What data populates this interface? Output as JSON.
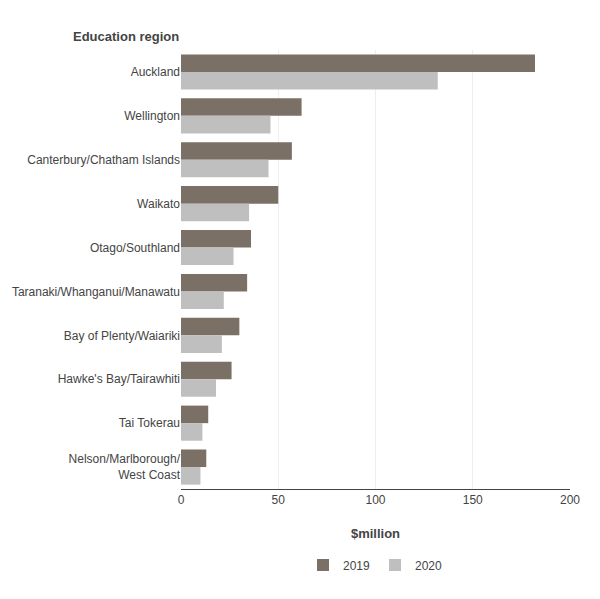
{
  "chart_data": {
    "type": "bar",
    "orientation": "horizontal",
    "xlabel": "$million",
    "ylabel": "Education region",
    "categories": [
      "Auckland",
      "Wellington",
      "Canterbury/Chatham Islands",
      "Waikato",
      "Otago/Southland",
      "Taranaki/Whanganui/Manawatu",
      "Bay of Plenty/Waiariki",
      "Hawke's Bay/Tairawhiti",
      "Tai Tokerau",
      "Nelson/Marlborough/\nWest Coast"
    ],
    "series": [
      {
        "name": "2019",
        "color": "#7a7065",
        "values": [
          182,
          62,
          57,
          50,
          36,
          34,
          30,
          26,
          14,
          13
        ]
      },
      {
        "name": "2020",
        "color": "#c0bfbf",
        "values": [
          132,
          46,
          45,
          35,
          27,
          22,
          21,
          18,
          11,
          10
        ]
      }
    ],
    "xlim": [
      0,
      200
    ],
    "xticks": [
      0,
      50,
      100,
      150,
      200
    ],
    "grid": true,
    "legend": "bottom"
  }
}
